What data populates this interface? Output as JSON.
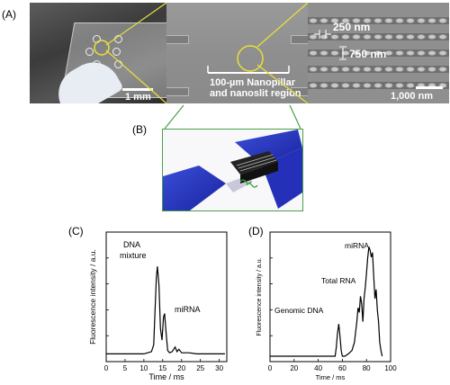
{
  "panel_labels": {
    "a": "(A)",
    "b": "(B)",
    "c": "(C)",
    "d": "(D)"
  },
  "panel_a": {
    "scale_1": "1 mm",
    "region_label_line1": "100-µm Nanopillar",
    "region_label_line2": "and nanoslit region",
    "dim_width": "250 nm",
    "dim_height": "750 nm",
    "scale_3": "1,000 nm"
  },
  "panel_c": {
    "ylabel": "Fluorescence intensity / a.u.",
    "xlabel": "Time / ms",
    "annotation_1_line1": "DNA",
    "annotation_1_line2": "mixture",
    "annotation_2": "miRNA",
    "x_ticks": [
      "0",
      "5",
      "10",
      "15",
      "20",
      "25",
      "30"
    ]
  },
  "panel_d": {
    "ylabel": "Fluorescence intensity / a.u.",
    "xlabel": "Time / ms",
    "annotation_1": "Genomic DNA",
    "annotation_2": "Total RNA",
    "annotation_3": "miRNA",
    "x_ticks": [
      "0",
      "20",
      "40",
      "60",
      "80",
      "100"
    ]
  },
  "chart_data": [
    {
      "type": "line",
      "panel": "C",
      "xlabel": "Time / ms",
      "ylabel": "Fluorescence intensity / a.u.",
      "xlim": [
        0,
        32
      ],
      "ylim": [
        0,
        1
      ],
      "x": [
        0,
        2,
        4,
        6,
        8,
        10,
        11,
        12,
        12.6,
        13.0,
        13.3,
        13.6,
        14.0,
        14.4,
        14.8,
        15.2,
        15.5,
        15.9,
        16.3,
        16.8,
        17.5,
        18.3,
        18.8,
        19.3,
        20,
        22,
        24,
        26,
        28,
        30,
        31.5
      ],
      "y": [
        0.02,
        0.02,
        0.02,
        0.02,
        0.02,
        0.02,
        0.03,
        0.04,
        0.1,
        0.42,
        0.68,
        0.78,
        0.62,
        0.24,
        0.14,
        0.34,
        0.37,
        0.2,
        0.05,
        0.03,
        0.04,
        0.08,
        0.04,
        0.06,
        0.03,
        0.03,
        0.02,
        0.02,
        0.02,
        0.02,
        0.02
      ]
    },
    {
      "type": "line",
      "panel": "D",
      "xlabel": "Time / ms",
      "ylabel": "Fluorescence intensity / a.u.",
      "xlim": [
        0,
        100
      ],
      "ylim": [
        0,
        1
      ],
      "x": [
        0,
        10,
        20,
        30,
        40,
        50,
        54,
        55,
        56,
        57,
        58,
        59,
        60,
        62,
        65,
        68,
        70,
        72,
        73,
        74,
        75,
        76,
        77,
        78,
        79,
        80,
        81,
        82,
        83,
        84,
        85,
        86,
        87,
        88,
        89,
        90,
        91,
        92,
        93
      ],
      "y": [
        0.0,
        0.0,
        0.0,
        0.0,
        0.0,
        0.0,
        0.0,
        0.08,
        0.2,
        0.28,
        0.18,
        0.05,
        0.0,
        0.0,
        0.02,
        0.05,
        0.12,
        0.3,
        0.42,
        0.38,
        0.52,
        0.46,
        0.3,
        0.5,
        0.6,
        0.72,
        0.85,
        0.95,
        0.92,
        0.86,
        0.9,
        0.7,
        0.5,
        0.58,
        0.4,
        0.3,
        0.12,
        0.05,
        0.0
      ]
    }
  ]
}
